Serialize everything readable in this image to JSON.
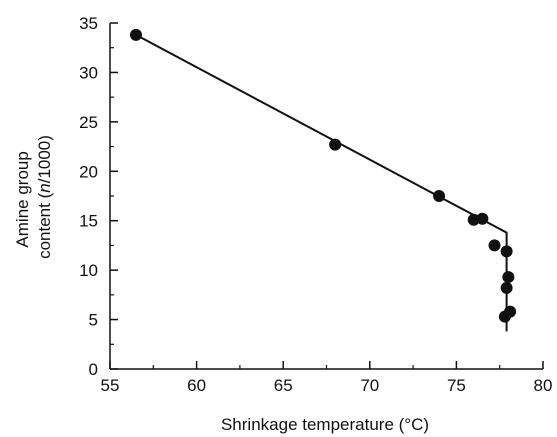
{
  "chart_data": {
    "type": "scatter",
    "title": "",
    "xlabel": "Shrinkage temperature (°C)",
    "ylabel_line1": "Amine group",
    "ylabel_line2_prefix": "content (",
    "ylabel_line2_italic": "n",
    "ylabel_line2_suffix": "/1000)",
    "xlim": [
      55,
      80
    ],
    "ylim": [
      0,
      35
    ],
    "x_ticks": [
      55,
      60,
      65,
      70,
      75,
      80
    ],
    "y_ticks": [
      0,
      5,
      10,
      15,
      20,
      25,
      30,
      35
    ],
    "grid": false,
    "points": [
      {
        "x": 56.5,
        "y": 33.8
      },
      {
        "x": 68.0,
        "y": 22.7
      },
      {
        "x": 74.0,
        "y": 17.5
      },
      {
        "x": 76.0,
        "y": 15.1
      },
      {
        "x": 76.5,
        "y": 15.2
      },
      {
        "x": 77.2,
        "y": 12.5
      },
      {
        "x": 77.9,
        "y": 11.9
      },
      {
        "x": 78.0,
        "y": 9.3
      },
      {
        "x": 77.9,
        "y": 8.2
      },
      {
        "x": 78.1,
        "y": 5.8
      },
      {
        "x": 77.8,
        "y": 5.3
      }
    ],
    "fit_line": [
      {
        "x": 56.5,
        "y": 33.8
      },
      {
        "x": 77.9,
        "y": 13.8
      },
      {
        "x": 77.9,
        "y": 3.8
      }
    ],
    "colors": {
      "marker": "#111111",
      "line": "#111111",
      "axis": "#111111"
    }
  }
}
